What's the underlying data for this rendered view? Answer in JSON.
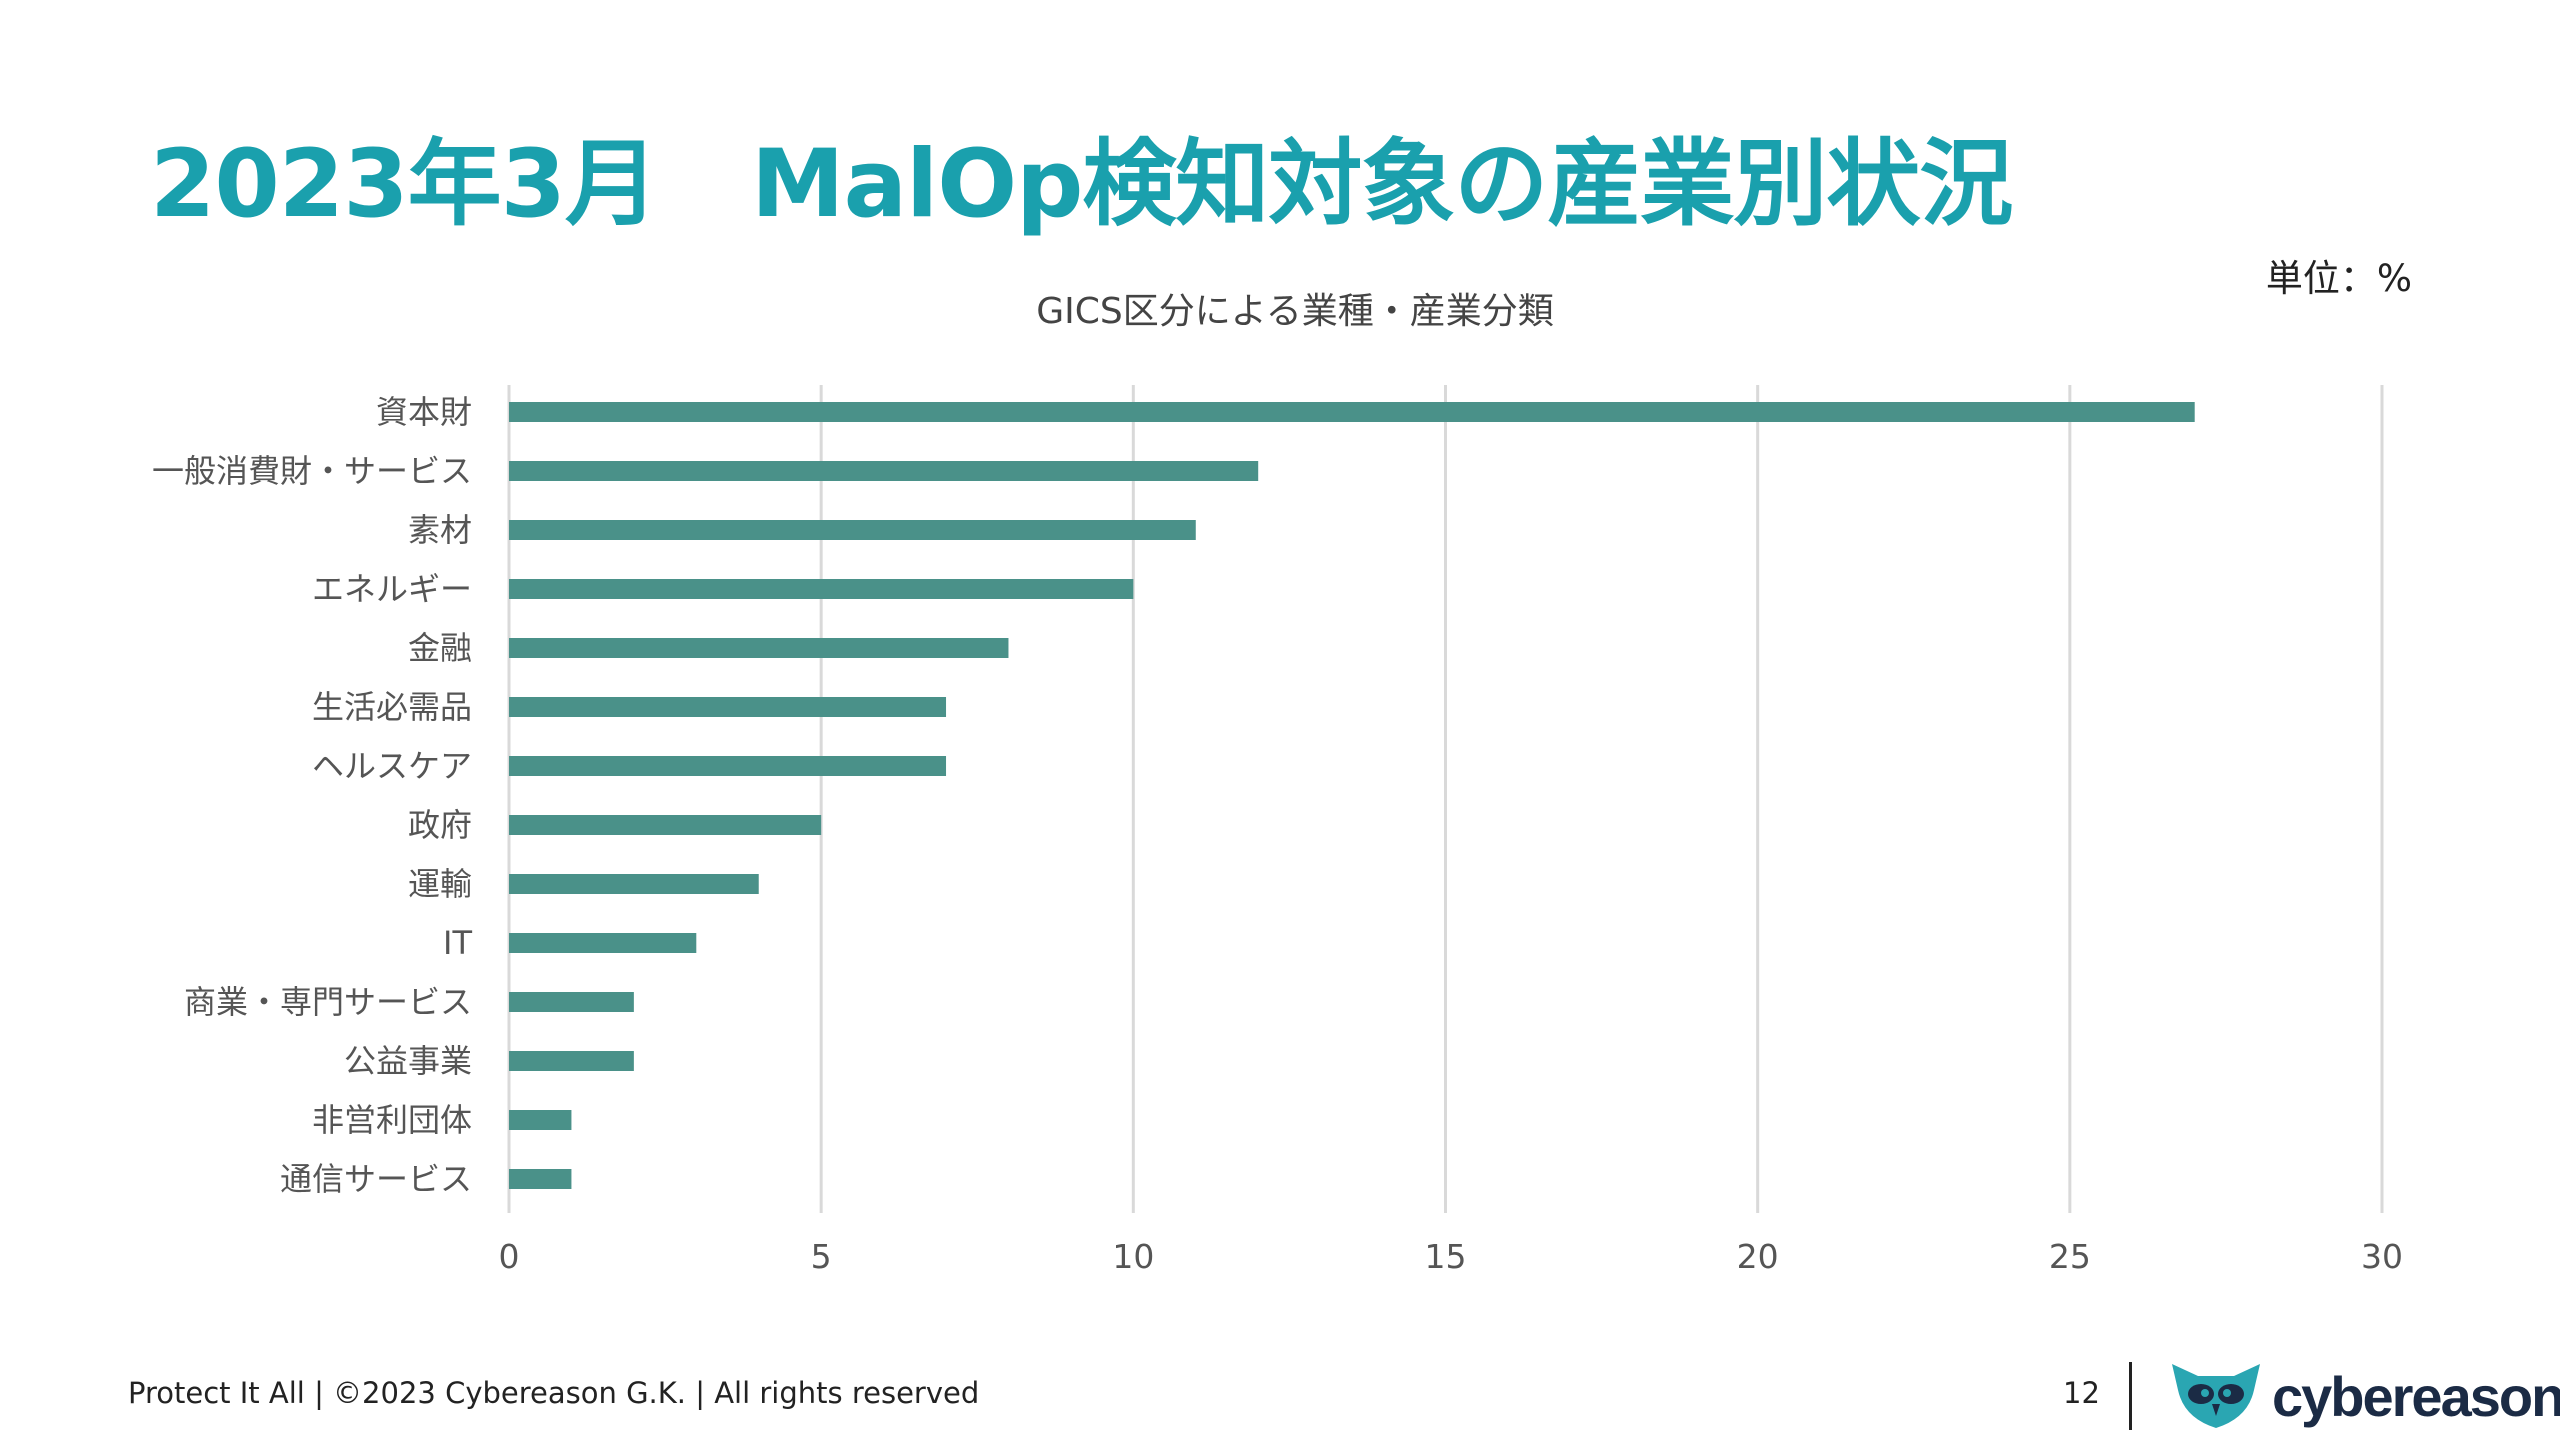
{
  "slide": {
    "title": "2023年3月　MalOp検知対象の産業別状況",
    "unit_label": "単位：%",
    "footer_text": "Protect It All | ©2023 Cybereason G.K. | All rights reserved",
    "page_number": "12",
    "logo_text": "cybereason"
  },
  "colors": {
    "title": "#1aa0ad",
    "bar": "#4a9189",
    "grid": "#d9d9d9",
    "logo_icon": "#2aa6b2"
  },
  "chart_data": {
    "type": "bar",
    "orientation": "horizontal",
    "title": "GICS区分による業種・産業分類",
    "categories": [
      "資本財",
      "一般消費財・サービス",
      "素材",
      "エネルギー",
      "金融",
      "生活必需品",
      "ヘルスケア",
      "政府",
      "運輸",
      "IT",
      "商業・専門サービス",
      "公益事業",
      "非営利団体",
      "通信サービス"
    ],
    "values": [
      27,
      12,
      11,
      10,
      8,
      7,
      7,
      5,
      4,
      3,
      2,
      2,
      1,
      1
    ],
    "xlim": [
      0,
      30
    ],
    "xticks": [
      0,
      5,
      10,
      15,
      20,
      25,
      30
    ],
    "grid": true,
    "legend": false
  }
}
